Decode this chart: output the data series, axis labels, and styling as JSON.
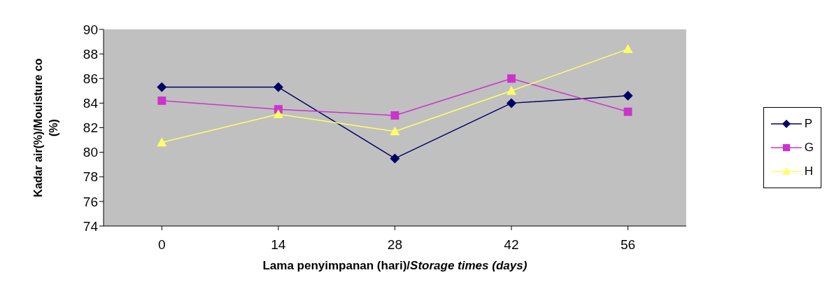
{
  "chart_data": {
    "type": "line",
    "xlabel": "Lama penyimpanan (hari)/Storage times (days)",
    "ylabel": "Kadar air(%)/Mouisture co (%)",
    "categories": [
      "0",
      "14",
      "28",
      "42",
      "56"
    ],
    "ylim": [
      74,
      90
    ],
    "yticks": [
      74,
      76,
      78,
      80,
      82,
      84,
      86,
      88,
      90
    ],
    "grid": false,
    "legend": "right",
    "series": [
      {
        "name": "P",
        "color": "#000066",
        "marker": "diamond",
        "values": [
          85.3,
          85.3,
          79.5,
          84.0,
          84.6
        ]
      },
      {
        "name": "G",
        "color": "#cc33cc",
        "marker": "square",
        "values": [
          84.2,
          83.5,
          83.0,
          86.0,
          83.3
        ]
      },
      {
        "name": "H",
        "color": "#ffff66",
        "marker": "triangle",
        "values": [
          80.8,
          83.1,
          81.7,
          85.0,
          88.4
        ]
      }
    ]
  }
}
